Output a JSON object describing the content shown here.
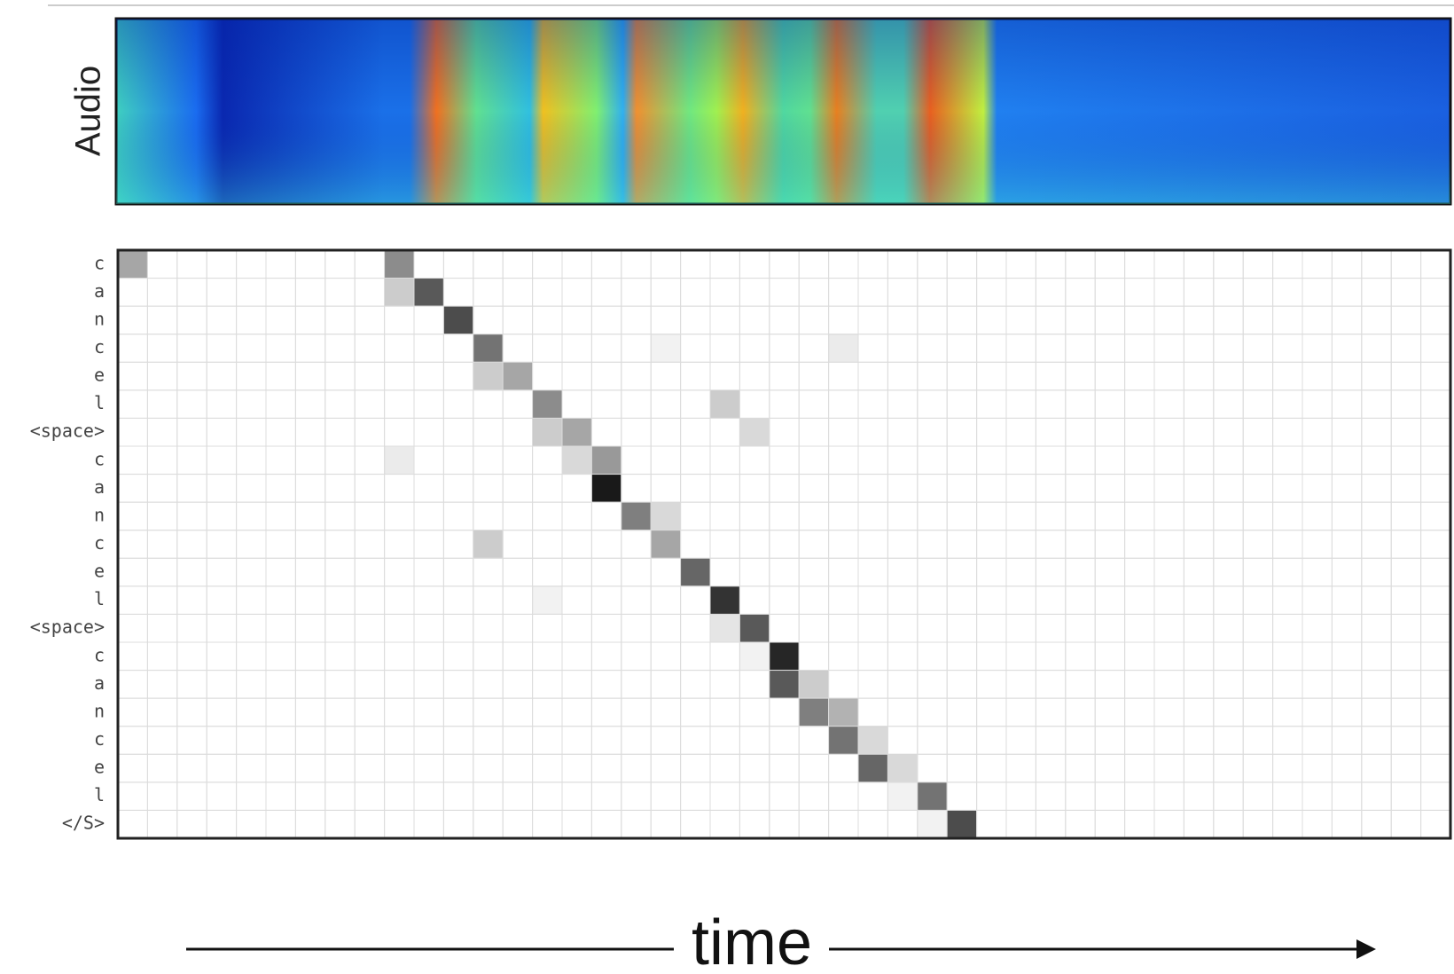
{
  "chart_data": {
    "type": "heatmap",
    "audio_label": "Audio",
    "x_label": "time",
    "y_categories": [
      "c",
      "a",
      "n",
      "c",
      "e",
      "l",
      "<space>",
      "c",
      "a",
      "n",
      "c",
      "e",
      "l",
      "<space>",
      "c",
      "a",
      "n",
      "c",
      "e",
      "l",
      "</S>"
    ],
    "color": "#000000",
    "values": [
      [
        0.35,
        0,
        0,
        0,
        0,
        0,
        0,
        0,
        0,
        0.45,
        0,
        0,
        0,
        0,
        0,
        0,
        0,
        0,
        0,
        0,
        0,
        0,
        0,
        0,
        0,
        0,
        0,
        0,
        0,
        0,
        0,
        0,
        0,
        0,
        0,
        0,
        0,
        0,
        0,
        0,
        0,
        0,
        0,
        0,
        0
      ],
      [
        0,
        0,
        0,
        0,
        0,
        0,
        0,
        0,
        0,
        0.2,
        0.65,
        0,
        0,
        0,
        0,
        0,
        0,
        0,
        0,
        0,
        0,
        0,
        0,
        0,
        0,
        0,
        0,
        0,
        0,
        0,
        0,
        0,
        0,
        0,
        0,
        0,
        0,
        0,
        0,
        0,
        0,
        0,
        0,
        0,
        0
      ],
      [
        0,
        0,
        0,
        0,
        0,
        0,
        0,
        0,
        0,
        0,
        0,
        0.7,
        0,
        0,
        0,
        0,
        0,
        0,
        0,
        0,
        0,
        0,
        0,
        0,
        0,
        0,
        0,
        0,
        0,
        0,
        0,
        0,
        0,
        0,
        0,
        0,
        0,
        0,
        0,
        0,
        0,
        0,
        0,
        0,
        0
      ],
      [
        0,
        0,
        0,
        0,
        0,
        0,
        0,
        0,
        0,
        0,
        0,
        0,
        0.55,
        0,
        0,
        0,
        0,
        0,
        0.05,
        0,
        0,
        0,
        0,
        0,
        0.08,
        0,
        0,
        0,
        0,
        0,
        0,
        0,
        0,
        0,
        0,
        0,
        0,
        0,
        0,
        0,
        0,
        0,
        0,
        0,
        0
      ],
      [
        0,
        0,
        0,
        0,
        0,
        0,
        0,
        0,
        0,
        0,
        0,
        0,
        0.2,
        0.35,
        0,
        0,
        0,
        0,
        0,
        0,
        0,
        0,
        0,
        0,
        0,
        0,
        0,
        0,
        0,
        0,
        0,
        0,
        0,
        0,
        0,
        0,
        0,
        0,
        0,
        0,
        0,
        0,
        0,
        0,
        0
      ],
      [
        0,
        0,
        0,
        0,
        0,
        0,
        0,
        0,
        0,
        0,
        0,
        0,
        0,
        0,
        0.45,
        0,
        0,
        0,
        0,
        0,
        0.2,
        0,
        0,
        0,
        0,
        0,
        0,
        0,
        0,
        0,
        0,
        0,
        0,
        0,
        0,
        0,
        0,
        0,
        0,
        0,
        0,
        0,
        0,
        0,
        0
      ],
      [
        0,
        0,
        0,
        0,
        0,
        0,
        0,
        0,
        0,
        0,
        0,
        0,
        0,
        0,
        0.2,
        0.35,
        0,
        0,
        0,
        0,
        0,
        0.15,
        0,
        0,
        0,
        0,
        0,
        0,
        0,
        0,
        0,
        0,
        0,
        0,
        0,
        0,
        0,
        0,
        0,
        0,
        0,
        0,
        0,
        0,
        0
      ],
      [
        0,
        0,
        0,
        0,
        0,
        0,
        0,
        0,
        0,
        0.08,
        0,
        0,
        0,
        0,
        0,
        0.15,
        0.4,
        0,
        0,
        0,
        0,
        0,
        0,
        0,
        0,
        0,
        0,
        0,
        0,
        0,
        0,
        0,
        0,
        0,
        0,
        0,
        0,
        0,
        0,
        0,
        0,
        0,
        0,
        0,
        0
      ],
      [
        0,
        0,
        0,
        0,
        0,
        0,
        0,
        0,
        0,
        0,
        0,
        0,
        0,
        0,
        0,
        0,
        0.9,
        0,
        0,
        0,
        0,
        0,
        0,
        0,
        0,
        0,
        0,
        0,
        0,
        0,
        0,
        0,
        0,
        0,
        0,
        0,
        0,
        0,
        0,
        0,
        0,
        0,
        0,
        0,
        0
      ],
      [
        0,
        0,
        0,
        0,
        0,
        0,
        0,
        0,
        0,
        0,
        0,
        0,
        0,
        0,
        0,
        0,
        0,
        0.5,
        0.15,
        0,
        0,
        0,
        0,
        0,
        0,
        0,
        0,
        0,
        0,
        0,
        0,
        0,
        0,
        0,
        0,
        0,
        0,
        0,
        0,
        0,
        0,
        0,
        0,
        0,
        0
      ],
      [
        0,
        0,
        0,
        0,
        0,
        0,
        0,
        0,
        0,
        0,
        0,
        0,
        0.2,
        0,
        0,
        0,
        0,
        0,
        0.35,
        0,
        0,
        0,
        0,
        0,
        0,
        0,
        0,
        0,
        0,
        0,
        0,
        0,
        0,
        0,
        0,
        0,
        0,
        0,
        0,
        0,
        0,
        0,
        0,
        0,
        0
      ],
      [
        0,
        0,
        0,
        0,
        0,
        0,
        0,
        0,
        0,
        0,
        0,
        0,
        0,
        0,
        0,
        0,
        0,
        0,
        0,
        0.6,
        0,
        0,
        0,
        0,
        0,
        0,
        0,
        0,
        0,
        0,
        0,
        0,
        0,
        0,
        0,
        0,
        0,
        0,
        0,
        0,
        0,
        0,
        0,
        0,
        0
      ],
      [
        0,
        0,
        0,
        0,
        0,
        0,
        0,
        0,
        0,
        0,
        0,
        0,
        0,
        0,
        0.05,
        0,
        0,
        0,
        0,
        0,
        0.8,
        0,
        0,
        0,
        0,
        0,
        0,
        0,
        0,
        0,
        0,
        0,
        0,
        0,
        0,
        0,
        0,
        0,
        0,
        0,
        0,
        0,
        0,
        0,
        0
      ],
      [
        0,
        0,
        0,
        0,
        0,
        0,
        0,
        0,
        0,
        0,
        0,
        0,
        0,
        0,
        0,
        0,
        0,
        0,
        0,
        0,
        0.1,
        0.65,
        0,
        0,
        0,
        0,
        0,
        0,
        0,
        0,
        0,
        0,
        0,
        0,
        0,
        0,
        0,
        0,
        0,
        0,
        0,
        0,
        0,
        0,
        0
      ],
      [
        0,
        0,
        0,
        0,
        0,
        0,
        0,
        0,
        0,
        0,
        0,
        0,
        0,
        0,
        0,
        0,
        0,
        0,
        0,
        0,
        0,
        0.05,
        0.85,
        0,
        0,
        0,
        0,
        0,
        0,
        0,
        0,
        0,
        0,
        0,
        0,
        0,
        0,
        0,
        0,
        0,
        0,
        0,
        0,
        0,
        0
      ],
      [
        0,
        0,
        0,
        0,
        0,
        0,
        0,
        0,
        0,
        0,
        0,
        0,
        0,
        0,
        0,
        0,
        0,
        0,
        0,
        0,
        0,
        0,
        0.65,
        0.2,
        0,
        0,
        0,
        0,
        0,
        0,
        0,
        0,
        0,
        0,
        0,
        0,
        0,
        0,
        0,
        0,
        0,
        0,
        0,
        0,
        0
      ],
      [
        0,
        0,
        0,
        0,
        0,
        0,
        0,
        0,
        0,
        0,
        0,
        0,
        0,
        0,
        0,
        0,
        0,
        0,
        0,
        0,
        0,
        0,
        0,
        0.5,
        0.3,
        0,
        0,
        0,
        0,
        0,
        0,
        0,
        0,
        0,
        0,
        0,
        0,
        0,
        0,
        0,
        0,
        0,
        0,
        0,
        0
      ],
      [
        0,
        0,
        0,
        0,
        0,
        0,
        0,
        0,
        0,
        0,
        0,
        0,
        0,
        0,
        0,
        0,
        0,
        0,
        0,
        0,
        0,
        0,
        0,
        0,
        0.55,
        0.15,
        0,
        0,
        0,
        0,
        0,
        0,
        0,
        0,
        0,
        0,
        0,
        0,
        0,
        0,
        0,
        0,
        0,
        0,
        0
      ],
      [
        0,
        0,
        0,
        0,
        0,
        0,
        0,
        0,
        0,
        0,
        0,
        0,
        0,
        0,
        0,
        0,
        0,
        0,
        0,
        0,
        0,
        0,
        0,
        0,
        0,
        0.6,
        0.15,
        0,
        0,
        0,
        0,
        0,
        0,
        0,
        0,
        0,
        0,
        0,
        0,
        0,
        0,
        0,
        0,
        0,
        0
      ],
      [
        0,
        0,
        0,
        0,
        0,
        0,
        0,
        0,
        0,
        0,
        0,
        0,
        0,
        0,
        0,
        0,
        0,
        0,
        0,
        0,
        0,
        0,
        0,
        0,
        0,
        0,
        0.05,
        0.55,
        0,
        0,
        0,
        0,
        0,
        0,
        0,
        0,
        0,
        0,
        0,
        0,
        0,
        0,
        0,
        0,
        0
      ],
      [
        0,
        0,
        0,
        0,
        0,
        0,
        0,
        0,
        0,
        0,
        0,
        0,
        0,
        0,
        0,
        0,
        0,
        0,
        0,
        0,
        0,
        0,
        0,
        0,
        0,
        0,
        0,
        0.05,
        0.7,
        0,
        0,
        0,
        0,
        0,
        0,
        0,
        0,
        0,
        0,
        0,
        0,
        0,
        0,
        0,
        0
      ]
    ]
  }
}
